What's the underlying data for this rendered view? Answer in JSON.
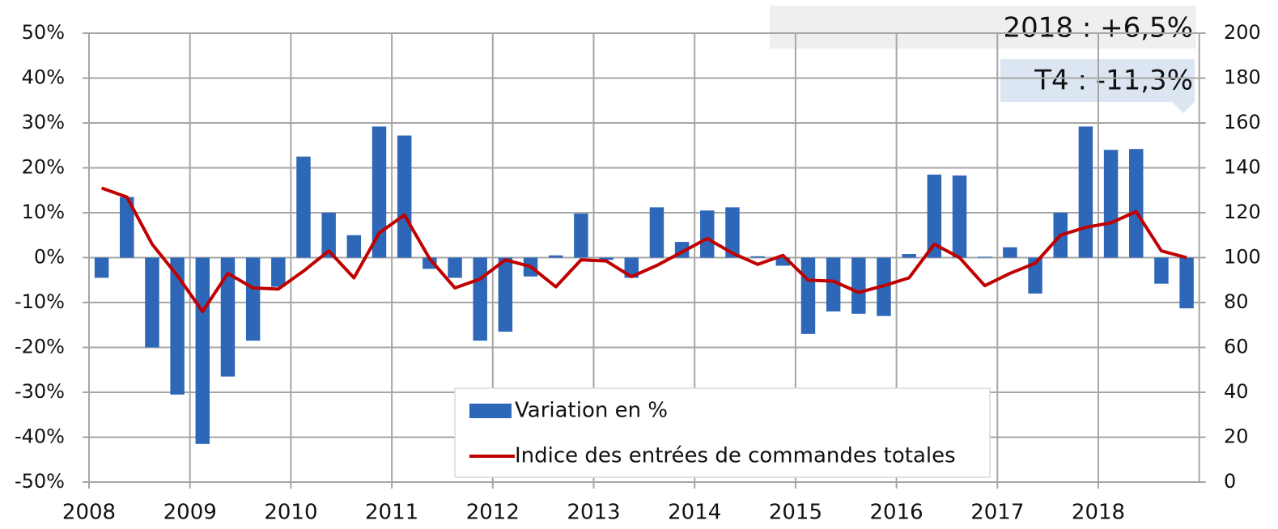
{
  "chart_data": {
    "type": "bar-line",
    "categories": [
      "2008",
      null,
      null,
      null,
      "2009",
      null,
      null,
      null,
      "2010",
      null,
      null,
      null,
      "2011",
      null,
      null,
      null,
      "2012",
      null,
      null,
      null,
      "2013",
      null,
      null,
      null,
      "2014",
      null,
      null,
      null,
      "2015",
      null,
      null,
      null,
      "2016",
      null,
      null,
      null,
      "2017",
      null,
      null,
      null,
      "2018",
      null,
      null,
      null
    ],
    "series": [
      {
        "name": "Variation en %",
        "type": "bar",
        "color": "#2e67b8",
        "axis": "y",
        "values": [
          -4.5,
          13.5,
          -20,
          -30.5,
          -41.5,
          -26.5,
          -18.5,
          -6.5,
          22.5,
          10,
          5,
          29.2,
          27.2,
          -2.5,
          -4.5,
          -18.5,
          -16.5,
          -4.2,
          0.5,
          9.8,
          -0.5,
          -4.5,
          11.2,
          3.5,
          10.5,
          11.2,
          0.3,
          -1.8,
          -17,
          -12,
          -12.5,
          -13,
          0.8,
          18.5,
          18.3,
          0.2,
          2.3,
          -8,
          10,
          29.2,
          24,
          24.2,
          -5.8,
          -11.3
        ]
      },
      {
        "name": "Indice des entrées de commandes totales",
        "type": "line",
        "color": "#c00000",
        "axis": "y2",
        "values": [
          131,
          127,
          106,
          92,
          76,
          93,
          86.5,
          86,
          94,
          103,
          91,
          111,
          119,
          99.5,
          86.5,
          90.5,
          99,
          96,
          87,
          99,
          98.5,
          91.5,
          96.5,
          102.5,
          108.5,
          102,
          97,
          101,
          90,
          89.5,
          84.5,
          87.5,
          91,
          106,
          100,
          87.5,
          93,
          97.5,
          110,
          113.5,
          115.5,
          120.5,
          103,
          100
        ]
      }
    ],
    "ylim": [
      -50,
      50
    ],
    "yticks": [
      {
        "value": -50,
        "label": "-50%"
      },
      {
        "value": -40,
        "label": "-40%"
      },
      {
        "value": -30,
        "label": "-30%"
      },
      {
        "value": -20,
        "label": "-20%"
      },
      {
        "value": -10,
        "label": "-10%"
      },
      {
        "value": 0,
        "label": "0%"
      },
      {
        "value": 10,
        "label": "10%"
      },
      {
        "value": 20,
        "label": "20%"
      },
      {
        "value": 30,
        "label": "30%"
      },
      {
        "value": 40,
        "label": "40%"
      },
      {
        "value": 50,
        "label": "50%"
      }
    ],
    "y2lim": [
      0,
      200
    ],
    "y2ticks": [
      0,
      20,
      40,
      60,
      80,
      100,
      120,
      140,
      160,
      180,
      200
    ],
    "grid": true,
    "legend": "bottom",
    "annotations": [
      "2018 : +6,5%",
      "T4 : -11,3%"
    ]
  }
}
